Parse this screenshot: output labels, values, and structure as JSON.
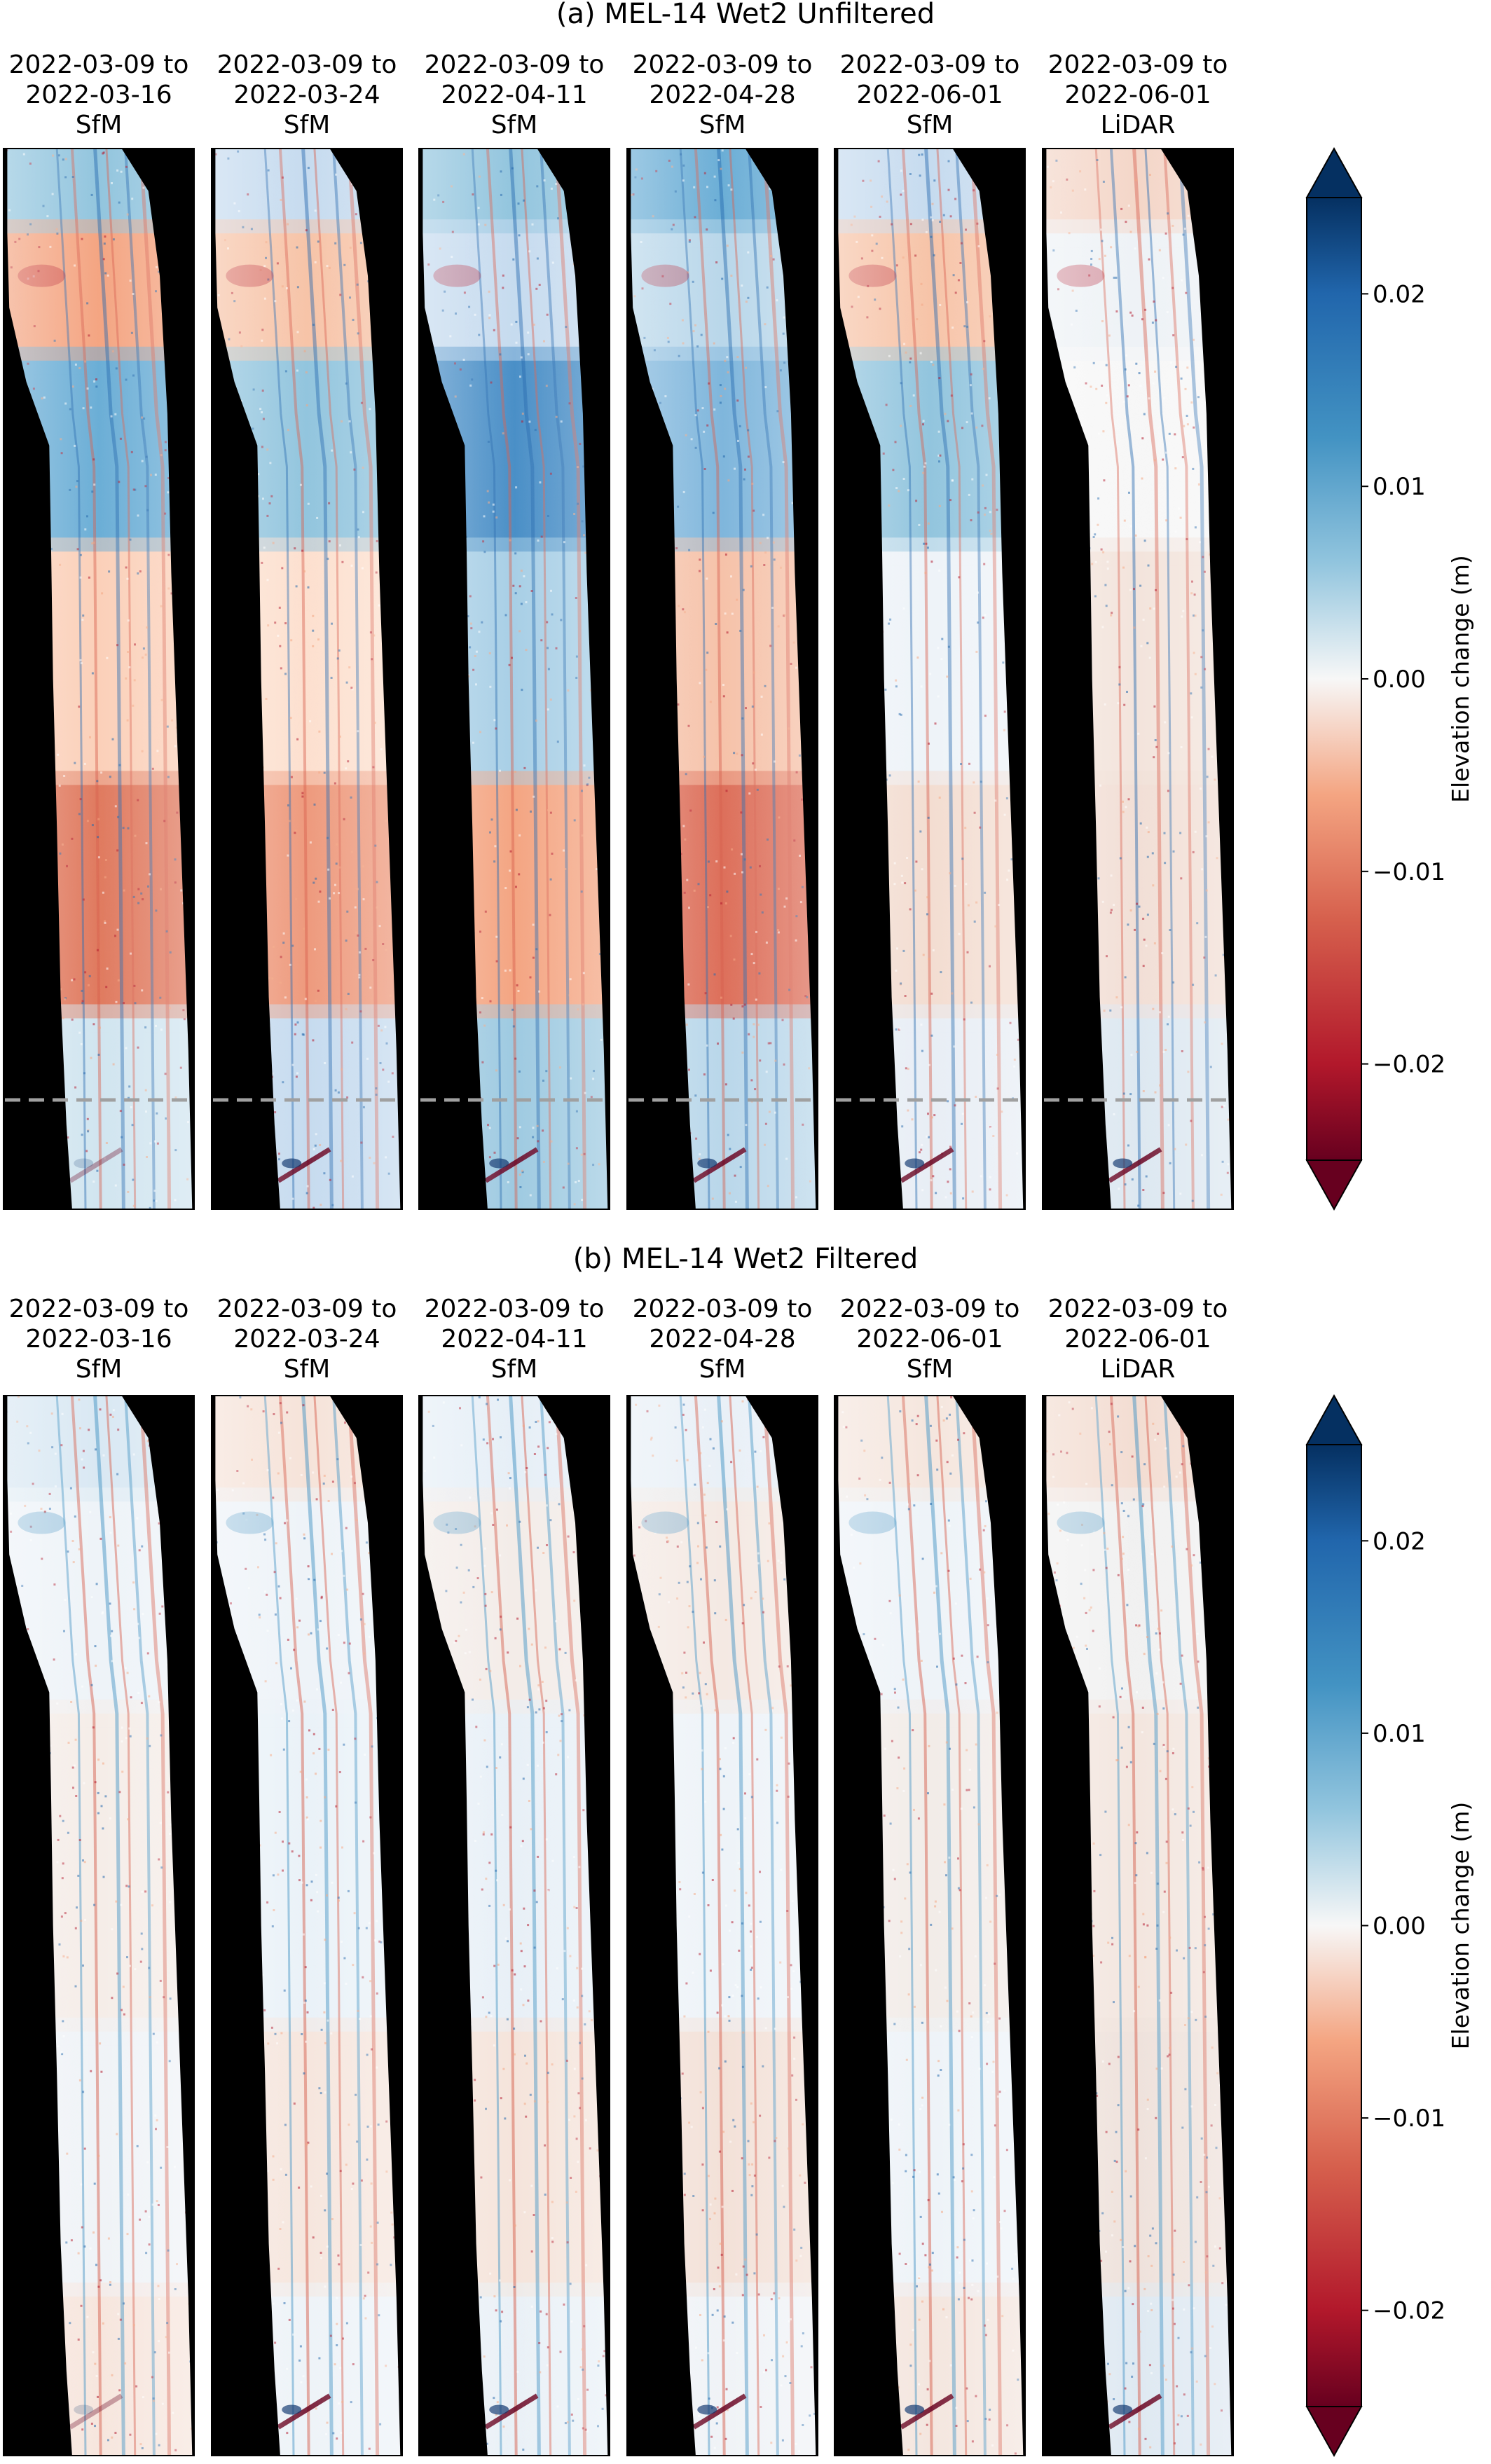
{
  "chart_data": [
    {
      "type": "heatmap",
      "title": "(a) MEL-14 Wet2 Unfiltered",
      "panels": [
        {
          "line1": "2022-03-09 to",
          "line2": "2022-03-16",
          "line3": "SfM"
        },
        {
          "line1": "2022-03-09 to",
          "line2": "2022-03-24",
          "line3": "SfM"
        },
        {
          "line1": "2022-03-09 to",
          "line2": "2022-04-11",
          "line3": "SfM"
        },
        {
          "line1": "2022-03-09 to",
          "line2": "2022-04-28",
          "line3": "SfM"
        },
        {
          "line1": "2022-03-09 to",
          "line2": "2022-06-01",
          "line3": "SfM"
        },
        {
          "line1": "2022-03-09 to",
          "line2": "2022-06-01",
          "line3": "LiDAR"
        }
      ],
      "colorbar": {
        "label": "Elevation change (m)",
        "range": [
          -0.025,
          0.025
        ],
        "extend": "both",
        "colormap": "RdBu",
        "ticks": [
          0.02,
          0.01,
          0.0,
          -0.01,
          -0.02
        ],
        "tick_labels": [
          "0.02",
          "0.01",
          "0.00",
          "−0.01",
          "−0.02"
        ]
      },
      "dashed_reference_line": true,
      "background_color": "#000000"
    },
    {
      "type": "heatmap",
      "title": "(b) MEL-14 Wet2 Filtered",
      "panels": [
        {
          "line1": "2022-03-09 to",
          "line2": "2022-03-16",
          "line3": "SfM"
        },
        {
          "line1": "2022-03-09 to",
          "line2": "2022-03-24",
          "line3": "SfM"
        },
        {
          "line1": "2022-03-09 to",
          "line2": "2022-04-11",
          "line3": "SfM"
        },
        {
          "line1": "2022-03-09 to",
          "line2": "2022-04-28",
          "line3": "SfM"
        },
        {
          "line1": "2022-03-09 to",
          "line2": "2022-06-01",
          "line3": "SfM"
        },
        {
          "line1": "2022-03-09 to",
          "line2": "2022-06-01",
          "line3": "LiDAR"
        }
      ],
      "colorbar": {
        "label": "Elevation change (m)",
        "range": [
          -0.025,
          0.025
        ],
        "extend": "both",
        "colormap": "RdBu",
        "ticks": [
          0.02,
          0.01,
          0.0,
          -0.01,
          -0.02
        ],
        "tick_labels": [
          "0.02",
          "0.01",
          "0.00",
          "−0.01",
          "−0.02"
        ]
      },
      "dashed_reference_line": false,
      "background_color": "#000000"
    }
  ],
  "colors": {
    "dark_blue": "#08306b",
    "blue": "#2166ac",
    "light_blue": "#92c5de",
    "neutral": "#f7f7f7",
    "light_red": "#f4a582",
    "red": "#b2182b",
    "dark_red": "#67001f",
    "dashed_line": "#a0a0a0"
  }
}
